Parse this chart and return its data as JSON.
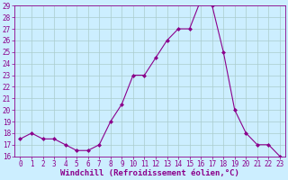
{
  "x": [
    0,
    1,
    2,
    3,
    4,
    5,
    6,
    7,
    8,
    9,
    10,
    11,
    12,
    13,
    14,
    15,
    16,
    17,
    18,
    19,
    20,
    21,
    22,
    23
  ],
  "y": [
    17.5,
    18.0,
    17.5,
    17.5,
    17.0,
    16.5,
    16.5,
    17.0,
    19.0,
    20.5,
    23.0,
    23.0,
    24.5,
    26.0,
    27.0,
    27.0,
    29.5,
    29.0,
    25.0,
    20.0,
    18.0,
    17.0,
    17.0,
    16.0
  ],
  "line_color": "#8b008b",
  "marker": "D",
  "marker_size": 2,
  "bg_color": "#cceeff",
  "grid_color": "#aacccc",
  "xlabel": "Windchill (Refroidissement éolien,°C)",
  "ylim": [
    16,
    29
  ],
  "xlim_min": -0.5,
  "xlim_max": 23.5,
  "yticks": [
    16,
    17,
    18,
    19,
    20,
    21,
    22,
    23,
    24,
    25,
    26,
    27,
    28,
    29
  ],
  "xticks": [
    0,
    1,
    2,
    3,
    4,
    5,
    6,
    7,
    8,
    9,
    10,
    11,
    12,
    13,
    14,
    15,
    16,
    17,
    18,
    19,
    20,
    21,
    22,
    23
  ],
  "tick_color": "#8b008b",
  "label_color": "#8b008b",
  "spine_color": "#8b008b",
  "tick_fontsize": 5.5,
  "xlabel_fontsize": 6.5
}
